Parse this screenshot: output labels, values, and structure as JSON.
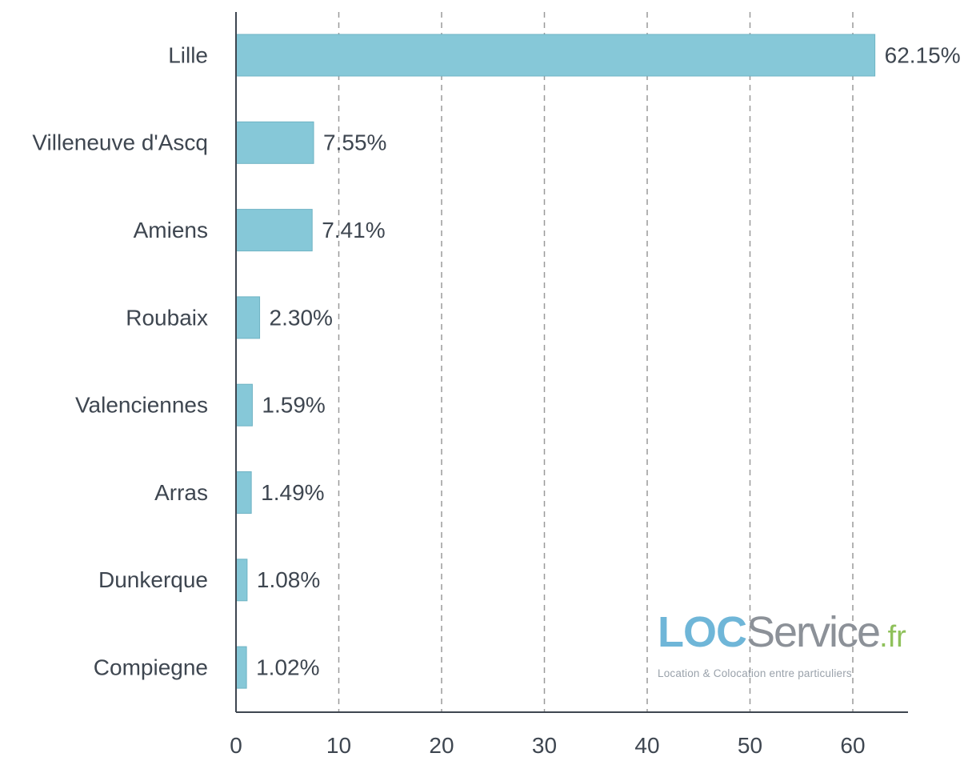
{
  "chart_data": {
    "type": "bar",
    "orientation": "horizontal",
    "categories": [
      "Lille",
      "Villeneuve d'Ascq",
      "Amiens",
      "Roubaix",
      "Valenciennes",
      "Arras",
      "Dunkerque",
      "Compiegne"
    ],
    "values": [
      62.15,
      7.55,
      7.41,
      2.3,
      1.59,
      1.49,
      1.08,
      1.02
    ],
    "value_labels": [
      "62.15%",
      "7.55%",
      "7.41%",
      "2.30%",
      "1.59%",
      "1.49%",
      "1.08%",
      "1.02%"
    ],
    "x_ticks": [
      "0",
      "10",
      "20",
      "30",
      "40",
      "50",
      "60"
    ],
    "xlim": [
      0,
      65
    ],
    "xlabel": "",
    "ylabel": "",
    "title": "",
    "grid": "vertical dashed",
    "bar_color": "#86c8d8"
  },
  "logo": {
    "brand_loc": "LOC",
    "brand_service": "Service",
    "brand_fr": ".fr",
    "tagline": "Location & Colocation entre particuliers"
  }
}
